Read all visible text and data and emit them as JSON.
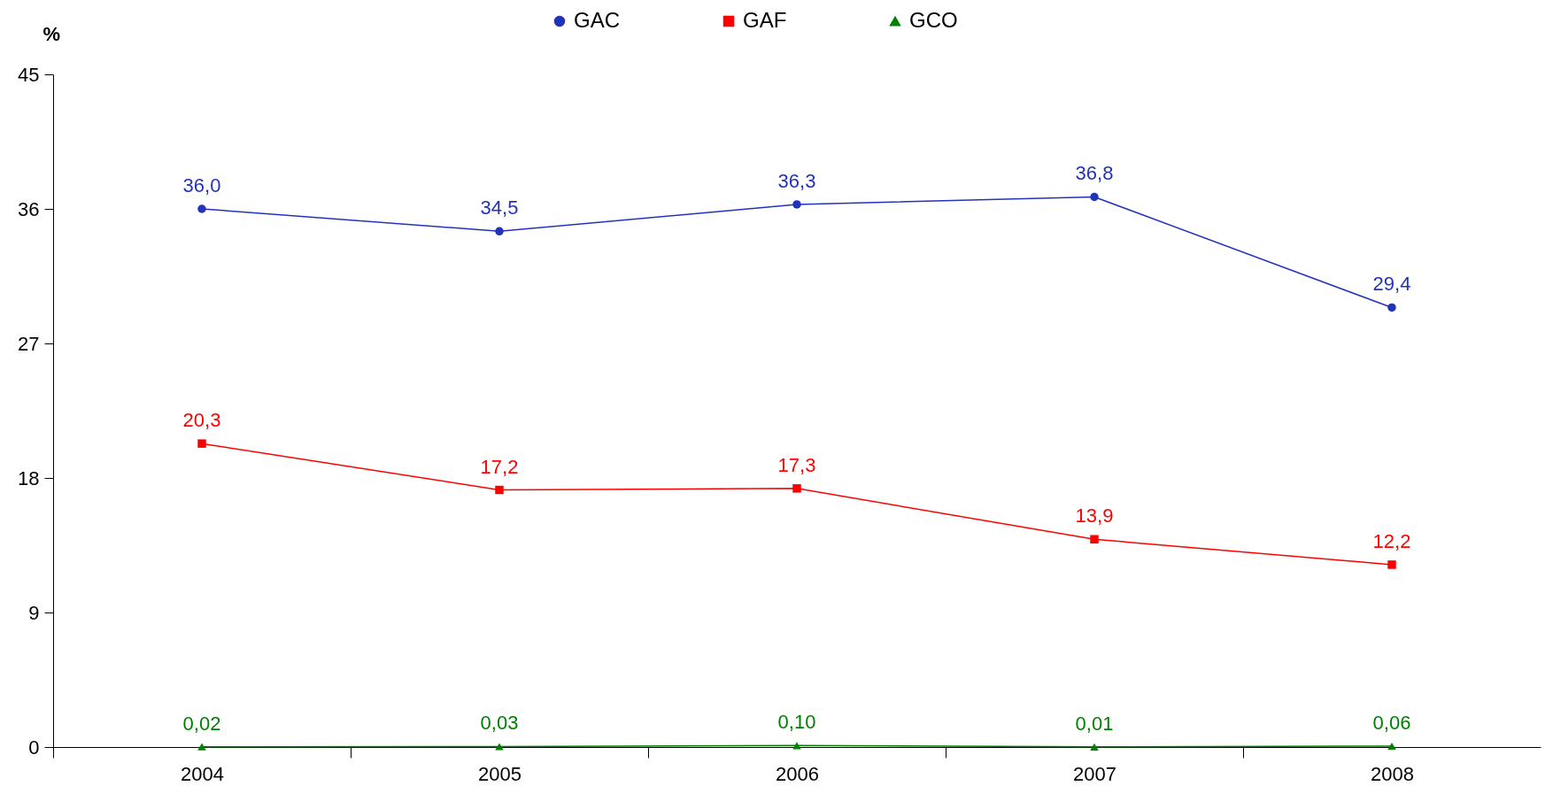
{
  "chart_data": {
    "type": "line",
    "ylabel": "%",
    "categories": [
      "2004",
      "2005",
      "2006",
      "2007",
      "2008"
    ],
    "series": [
      {
        "name": "GAC",
        "color": "#2233bb",
        "marker": "circle",
        "values": [
          36.0,
          34.5,
          36.3,
          36.8,
          29.4
        ],
        "value_labels": [
          "36,0",
          "34,5",
          "36,3",
          "36,8",
          "29,4"
        ]
      },
      {
        "name": "GAF",
        "color": "#ff0000",
        "marker": "square",
        "values": [
          20.3,
          17.2,
          17.3,
          13.9,
          12.2
        ],
        "value_labels": [
          "20,3",
          "17,2",
          "17,3",
          "13,9",
          "12,2"
        ]
      },
      {
        "name": "GCO",
        "color": "#008000",
        "marker": "triangle",
        "values": [
          0.02,
          0.03,
          0.1,
          0.01,
          0.06
        ],
        "value_labels": [
          "0,02",
          "0,03",
          "0,10",
          "0,01",
          "0,06"
        ]
      }
    ],
    "ylim": [
      0,
      45
    ],
    "yticks": [
      0,
      9,
      18,
      27,
      36,
      45
    ],
    "grid": false,
    "legend": "top",
    "line_style": "solid"
  }
}
